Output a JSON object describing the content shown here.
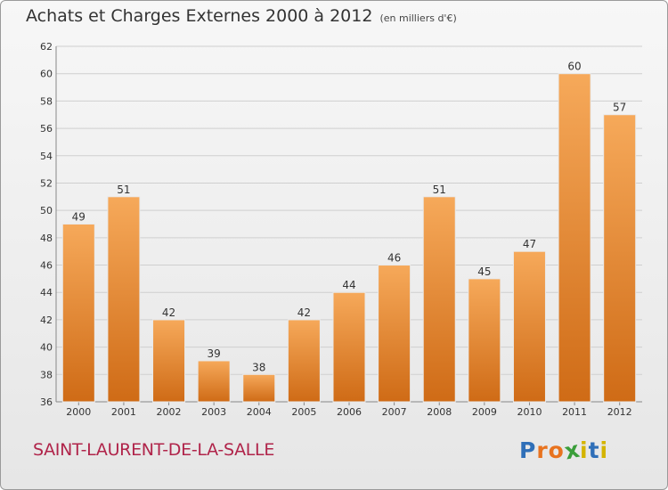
{
  "header": {
    "title": "Achats et Charges Externes 2000 à 2012",
    "subtitle": "(en milliers d'€)"
  },
  "commune": "SAINT-LAURENT-DE-LA-SALLE",
  "logo": {
    "text": "Proxiti",
    "letter_colors": [
      "#2f6fb8",
      "#e8731f",
      "#e8731f",
      "#3a9e3a",
      "#d4b400",
      "#2f6fb8",
      "#d4b400"
    ]
  },
  "colors": {
    "bar_top": "#f6a95a",
    "bar_bottom": "#cf6b16",
    "grid": "#cfcfcf",
    "axis_text": "#333333"
  },
  "chart_data": {
    "type": "bar",
    "categories": [
      "2000",
      "2001",
      "2002",
      "2003",
      "2004",
      "2005",
      "2006",
      "2007",
      "2008",
      "2009",
      "2010",
      "2011",
      "2012"
    ],
    "values": [
      49,
      51,
      42,
      39,
      38,
      42,
      44,
      46,
      51,
      45,
      47,
      60,
      57
    ],
    "ylim": [
      36,
      62
    ],
    "yticks": [
      36,
      38,
      40,
      42,
      44,
      46,
      48,
      50,
      52,
      54,
      56,
      58,
      60,
      62
    ],
    "data_labels": true,
    "grid": true
  }
}
